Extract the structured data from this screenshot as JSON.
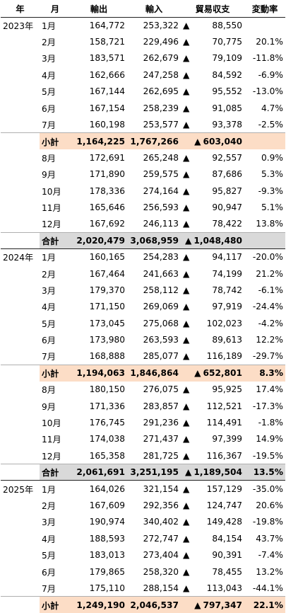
{
  "headers": {
    "year": "年",
    "month": "月",
    "exports": "輸出",
    "imports": "輸入",
    "balance": "貿易収支",
    "change": "変動率"
  },
  "triangle": "▲",
  "rows": [
    {
      "year": "2023年",
      "month": "1月",
      "exports": "164,772",
      "imports": "253,322",
      "balance": "88,550",
      "change": ""
    },
    {
      "year": "",
      "month": "2月",
      "exports": "158,721",
      "imports": "229,496",
      "balance": "70,775",
      "change": "20.1%"
    },
    {
      "year": "",
      "month": "3月",
      "exports": "183,571",
      "imports": "262,679",
      "balance": "79,109",
      "change": "-11.8%"
    },
    {
      "year": "",
      "month": "4月",
      "exports": "162,666",
      "imports": "247,258",
      "balance": "84,592",
      "change": "-6.9%"
    },
    {
      "year": "",
      "month": "5月",
      "exports": "167,144",
      "imports": "262,695",
      "balance": "95,552",
      "change": "-13.0%"
    },
    {
      "year": "",
      "month": "6月",
      "exports": "167,154",
      "imports": "258,239",
      "balance": "91,085",
      "change": "4.7%"
    },
    {
      "year": "",
      "month": "7月",
      "exports": "160,198",
      "imports": "253,577",
      "balance": "93,378",
      "change": "-2.5%"
    },
    {
      "type": "sub",
      "year": "",
      "month": "小計",
      "exports": "1,164,225",
      "imports": "1,767,266",
      "balance": "603,040",
      "change": ""
    },
    {
      "year": "",
      "month": "8月",
      "exports": "172,691",
      "imports": "265,248",
      "balance": "92,557",
      "change": "0.9%"
    },
    {
      "year": "",
      "month": "9月",
      "exports": "171,890",
      "imports": "259,575",
      "balance": "87,686",
      "change": "5.3%"
    },
    {
      "year": "",
      "month": "10月",
      "exports": "178,336",
      "imports": "274,164",
      "balance": "95,827",
      "change": "-9.3%"
    },
    {
      "year": "",
      "month": "11月",
      "exports": "165,646",
      "imports": "256,593",
      "balance": "90,947",
      "change": "5.1%"
    },
    {
      "year": "",
      "month": "12月",
      "exports": "167,692",
      "imports": "246,113",
      "balance": "78,422",
      "change": "13.8%"
    },
    {
      "type": "tot",
      "year": "",
      "month": "合計",
      "exports": "2,020,479",
      "imports": "3,068,959",
      "balance": "1,048,480",
      "change": ""
    },
    {
      "year": "2024年",
      "month": "1月",
      "exports": "160,165",
      "imports": "254,283",
      "balance": "94,117",
      "change": "-20.0%"
    },
    {
      "year": "",
      "month": "2月",
      "exports": "167,464",
      "imports": "241,663",
      "balance": "74,199",
      "change": "21.2%"
    },
    {
      "year": "",
      "month": "3月",
      "exports": "179,370",
      "imports": "258,112",
      "balance": "78,742",
      "change": "-6.1%"
    },
    {
      "year": "",
      "month": "4月",
      "exports": "171,150",
      "imports": "269,069",
      "balance": "97,919",
      "change": "-24.4%"
    },
    {
      "year": "",
      "month": "5月",
      "exports": "173,045",
      "imports": "275,068",
      "balance": "102,023",
      "change": "-4.2%"
    },
    {
      "year": "",
      "month": "6月",
      "exports": "173,980",
      "imports": "263,593",
      "balance": "89,613",
      "change": "12.2%"
    },
    {
      "year": "",
      "month": "7月",
      "exports": "168,888",
      "imports": "285,077",
      "balance": "116,189",
      "change": "-29.7%"
    },
    {
      "type": "sub",
      "year": "",
      "month": "小計",
      "exports": "1,194,063",
      "imports": "1,846,864",
      "balance": "652,801",
      "change": "8.3%"
    },
    {
      "year": "",
      "month": "8月",
      "exports": "180,150",
      "imports": "276,075",
      "balance": "95,925",
      "change": "17.4%"
    },
    {
      "year": "",
      "month": "9月",
      "exports": "171,336",
      "imports": "283,857",
      "balance": "112,521",
      "change": "-17.3%"
    },
    {
      "year": "",
      "month": "10月",
      "exports": "176,745",
      "imports": "291,236",
      "balance": "114,491",
      "change": "-1.8%"
    },
    {
      "year": "",
      "month": "11月",
      "exports": "174,038",
      "imports": "271,437",
      "balance": "97,399",
      "change": "14.9%"
    },
    {
      "year": "",
      "month": "12月",
      "exports": "165,358",
      "imports": "281,725",
      "balance": "116,367",
      "change": "-19.5%"
    },
    {
      "type": "tot",
      "year": "",
      "month": "合計",
      "exports": "2,061,691",
      "imports": "3,251,195",
      "balance": "1,189,504",
      "change": "13.5%"
    },
    {
      "year": "2025年",
      "month": "1月",
      "exports": "164,026",
      "imports": "321,154",
      "balance": "157,129",
      "change": "-35.0%"
    },
    {
      "year": "",
      "month": "2月",
      "exports": "167,609",
      "imports": "292,356",
      "balance": "124,747",
      "change": "20.6%"
    },
    {
      "year": "",
      "month": "3月",
      "exports": "190,974",
      "imports": "340,402",
      "balance": "149,428",
      "change": "-19.8%"
    },
    {
      "year": "",
      "month": "4月",
      "exports": "188,593",
      "imports": "272,747",
      "balance": "84,154",
      "change": "43.7%"
    },
    {
      "year": "",
      "month": "5月",
      "exports": "183,013",
      "imports": "273,404",
      "balance": "90,391",
      "change": "-7.4%"
    },
    {
      "year": "",
      "month": "6月",
      "exports": "179,865",
      "imports": "258,320",
      "balance": "78,455",
      "change": "13.2%"
    },
    {
      "year": "",
      "month": "7月",
      "exports": "175,110",
      "imports": "288,154",
      "balance": "113,043",
      "change": "-44.1%"
    },
    {
      "type": "sub",
      "year": "",
      "month": "小計",
      "exports": "1,249,190",
      "imports": "2,046,537",
      "balance": "797,347",
      "change": "22.1%"
    }
  ]
}
